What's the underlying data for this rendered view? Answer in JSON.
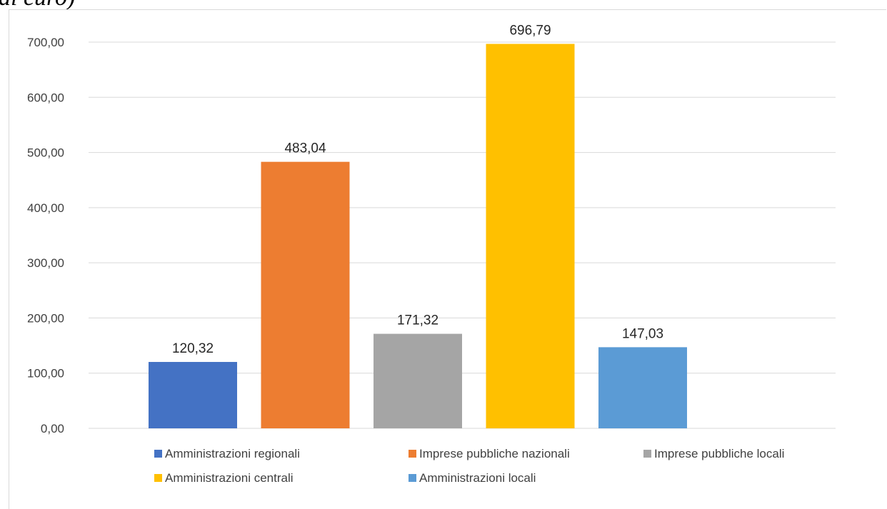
{
  "page": {
    "cut_title": "di euro)"
  },
  "chart_data": {
    "type": "bar",
    "categories": [
      "Amministrazioni regionali",
      "Imprese pubbliche nazionali",
      "Imprese pubbliche locali",
      "Amministrazioni centrali",
      "Amministrazioni locali"
    ],
    "values": [
      120.32,
      483.04,
      171.32,
      696.79,
      147.03
    ],
    "value_labels": [
      "120,32",
      "483,04",
      "171,32",
      "696,79",
      "147,03"
    ],
    "colors": [
      "#4472c4",
      "#ed7d31",
      "#a5a5a5",
      "#ffc000",
      "#5b9bd5"
    ],
    "ylim": [
      0,
      700
    ],
    "yticks": [
      0,
      100,
      200,
      300,
      400,
      500,
      600,
      700
    ],
    "ytick_labels": [
      "0,00",
      "100,00",
      "200,00",
      "300,00",
      "400,00",
      "500,00",
      "600,00",
      "700,00"
    ],
    "grid": true,
    "legend": "bottom",
    "title": "",
    "xlabel": "",
    "ylabel": ""
  }
}
